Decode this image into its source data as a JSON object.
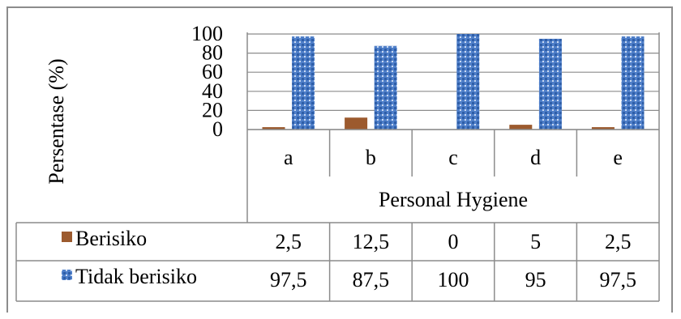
{
  "chart_data": {
    "type": "bar",
    "categories": [
      "a",
      "b",
      "c",
      "d",
      "e"
    ],
    "series": [
      {
        "name": "Berisiko",
        "values": [
          2.5,
          12.5,
          0,
          5,
          2.5
        ],
        "labels": [
          "2,5",
          "12,5",
          "0",
          "5",
          "2,5"
        ]
      },
      {
        "name": "Tidak berisiko",
        "values": [
          97.5,
          87.5,
          100,
          95,
          97.5
        ],
        "labels": [
          "97,5",
          "87,5",
          "100",
          "95",
          "97,5"
        ]
      }
    ],
    "xlabel": "Personal Hygiene",
    "ylabel": "Persentase (%)",
    "ylim": [
      0,
      100
    ],
    "yticks": [
      0,
      20,
      40,
      60,
      80,
      100
    ],
    "grid": true,
    "legend": "data-table-rows",
    "colors": {
      "Berisiko": "#9c5a2e",
      "Tidak berisiko": "#4f7fc9"
    }
  }
}
